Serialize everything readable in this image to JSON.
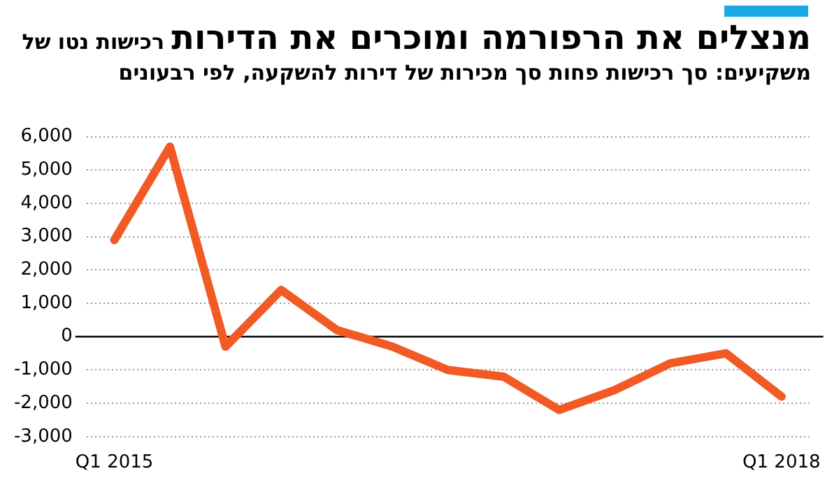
{
  "chart_data": {
    "type": "line",
    "title": "מנצלים את הרפורמה ומוכרים את הדירות",
    "subtitle": "רכישות נטו של משקיעים: סך רכישות פחות סך מכירות של דירות להשקעה, לפי רבעונים",
    "categories": [
      "Q1 2015",
      null,
      null,
      null,
      null,
      null,
      null,
      null,
      null,
      null,
      null,
      null,
      "Q1 2018"
    ],
    "series": [
      {
        "color": "#f15a24",
        "values": [
          2900,
          5700,
          -300,
          1400,
          200,
          -300,
          -1000,
          -1200,
          -2200,
          -1600,
          -800,
          -500,
          -1800
        ]
      }
    ],
    "ylim": [
      -3000,
      6000
    ],
    "yticks": [
      {
        "value": -3000,
        "label": "-3,000"
      },
      {
        "value": -2000,
        "label": "-2,000"
      },
      {
        "value": -1000,
        "label": "-1,000"
      },
      0,
      {
        "value": 1000,
        "label": "1,000"
      },
      {
        "value": 2000,
        "label": "2,000"
      },
      {
        "value": 3000,
        "label": "3,000"
      },
      {
        "value": 4000,
        "label": "4,000"
      },
      {
        "value": 5000,
        "label": "5,000"
      },
      {
        "value": 6000,
        "label": "6,000"
      }
    ],
    "ref_lines": [
      {
        "axis": "y",
        "value": 0,
        "color": "#000000"
      }
    ],
    "grid": "y",
    "legend": false,
    "marker": "none",
    "line_style": "solid"
  }
}
